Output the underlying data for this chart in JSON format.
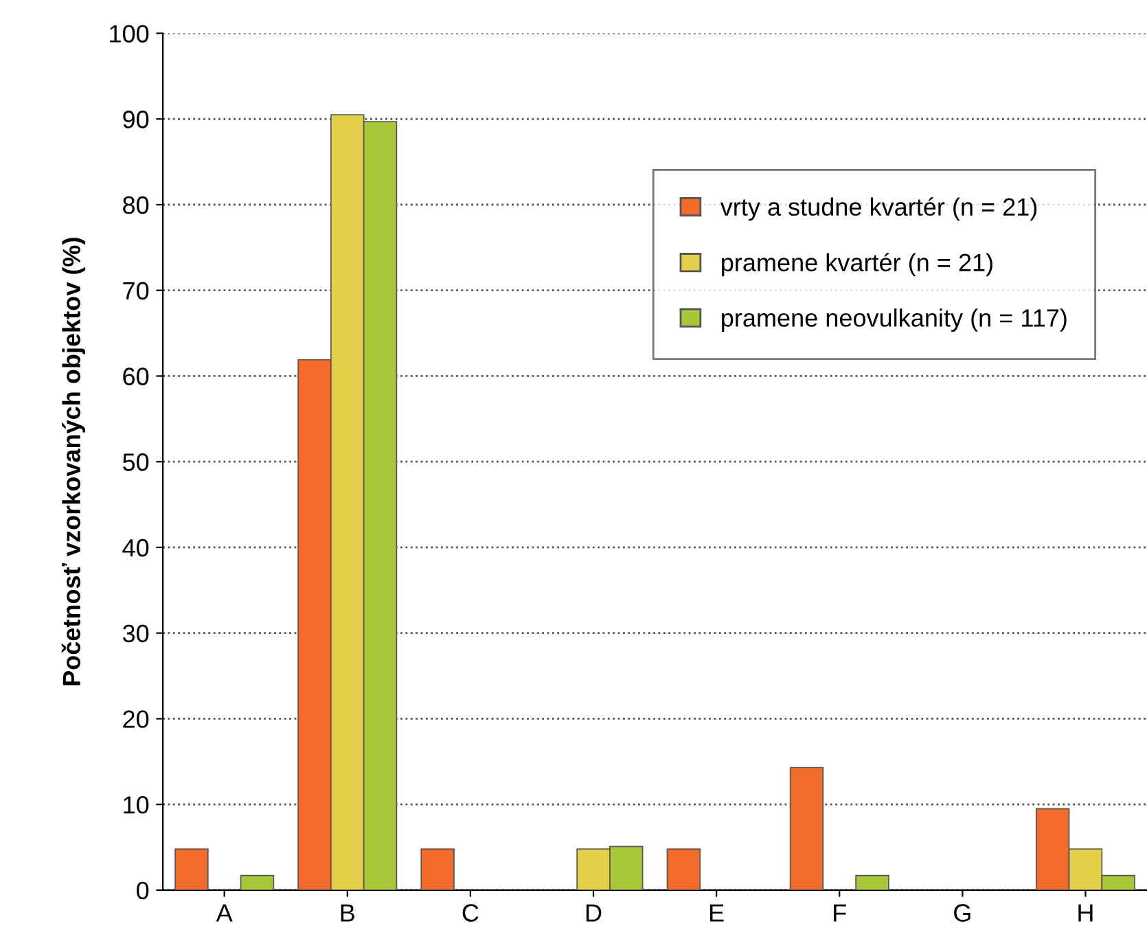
{
  "chart_data": {
    "type": "bar",
    "ylabel": "Početnosť vzorkovaných objektov (%)",
    "categories": [
      "A",
      "B",
      "C",
      "D",
      "E",
      "F",
      "G",
      "H"
    ],
    "series": [
      {
        "name": "vrty a studne kvartér (n = 21)",
        "color": "#f26b2a",
        "values": [
          4.8,
          61.9,
          4.8,
          null,
          4.8,
          14.3,
          null,
          9.5
        ]
      },
      {
        "name": "pramene kvartér (n = 21)",
        "color": "#e6cf4a",
        "values": [
          null,
          90.5,
          null,
          4.8,
          null,
          null,
          null,
          4.8
        ]
      },
      {
        "name": "pramene neovulkanity (n = 117)",
        "color": "#a8c83a",
        "values": [
          1.7,
          89.7,
          null,
          5.1,
          null,
          1.7,
          null,
          1.7
        ]
      }
    ],
    "ylim": [
      0,
      100
    ],
    "yticks": [
      0,
      10,
      20,
      30,
      40,
      50,
      60,
      70,
      80,
      90,
      100
    ],
    "grid": "y",
    "legend": "top right"
  }
}
